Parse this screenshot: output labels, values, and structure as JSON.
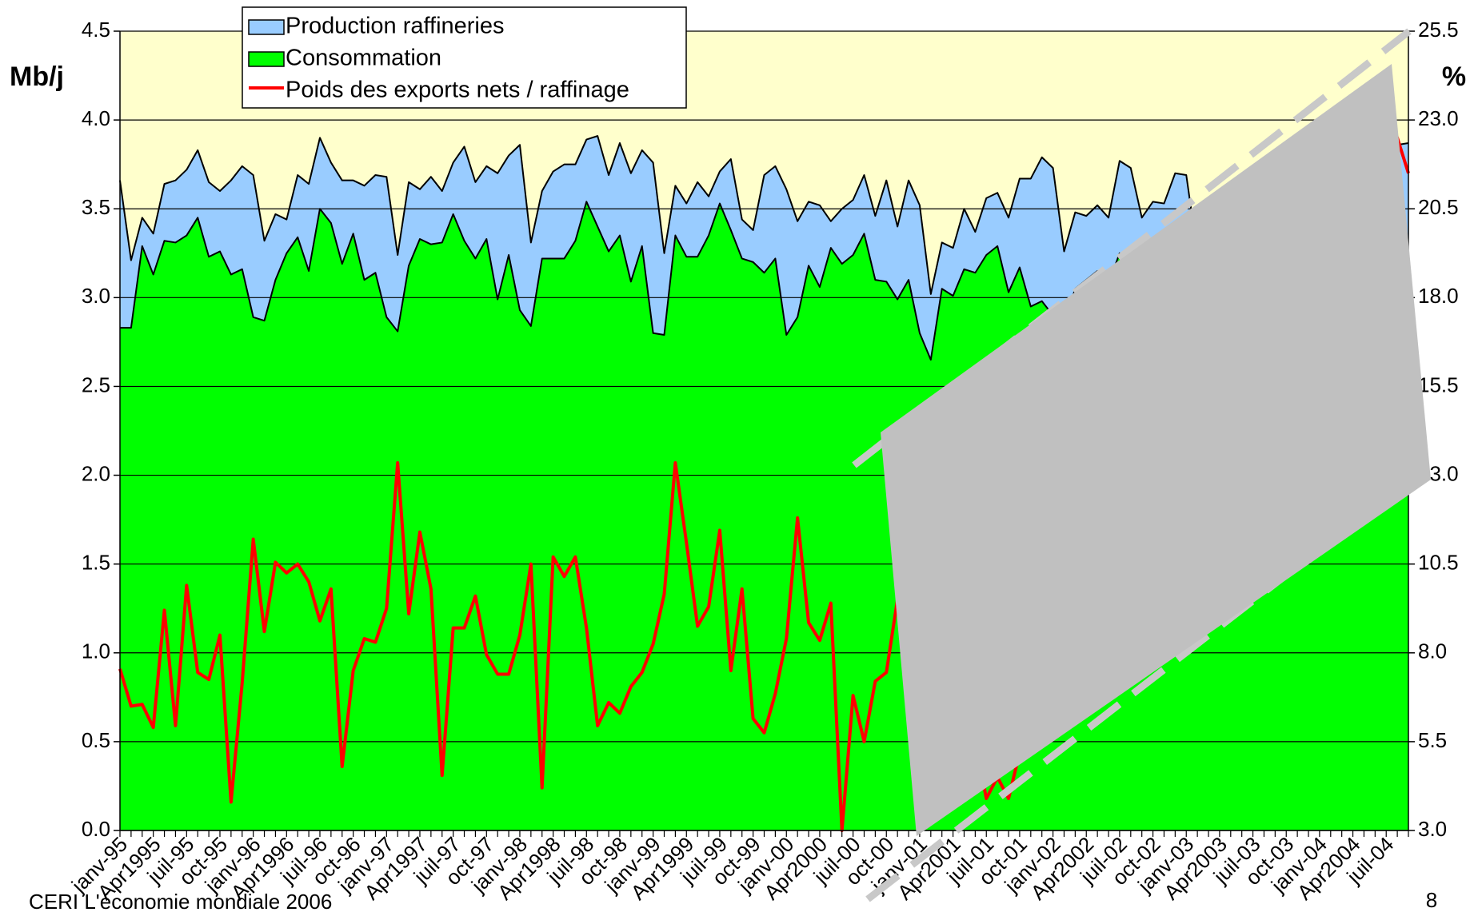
{
  "chart_data": {
    "type": "area",
    "y_label": "Mb/j",
    "y2_label": "%",
    "footer": "CERI L'économie mondiale 2006",
    "page_number": "8",
    "categories": [
      "janv-95",
      null,
      null,
      "Apr1995",
      null,
      null,
      "juil-95",
      null,
      null,
      "oct-95",
      null,
      null,
      "janv-96",
      null,
      null,
      "Apr1996",
      null,
      null,
      "juil-96",
      null,
      null,
      "oct-96",
      null,
      null,
      "janv-97",
      null,
      null,
      "Apr1997",
      null,
      null,
      "juil-97",
      null,
      null,
      "oct-97",
      null,
      null,
      "janv-98",
      null,
      null,
      "Apr1998",
      null,
      null,
      "juil-98",
      null,
      null,
      "oct-98",
      null,
      null,
      "janv-99",
      null,
      null,
      "Apr1999",
      null,
      null,
      "juil-99",
      null,
      null,
      "oct-99",
      null,
      null,
      "janv-00",
      null,
      null,
      "Apr2000",
      null,
      null,
      "juil-00",
      null,
      null,
      "oct-00",
      null,
      null,
      "janv-01",
      null,
      null,
      "Apr2001",
      null,
      null,
      "juil-01",
      null,
      null,
      "oct-01",
      null,
      null,
      "janv-02",
      null,
      null,
      "Apr2002",
      null,
      null,
      "juil-02",
      null,
      null,
      "oct-02",
      null,
      null,
      "janv-03",
      null,
      null,
      "Apr2003",
      null,
      null,
      "juil-03",
      null,
      null,
      "oct-03",
      null,
      null,
      "janv-04",
      null,
      null,
      "Apr2004",
      null,
      null,
      "juil-04",
      null,
      null
    ],
    "series": [
      {
        "name": "Production raffineries",
        "type": "area",
        "color": "#99ccff",
        "values": [
          3.66,
          3.21,
          3.45,
          3.36,
          3.64,
          3.66,
          3.72,
          3.83,
          3.65,
          3.6,
          3.66,
          3.74,
          3.69,
          3.32,
          3.47,
          3.44,
          3.69,
          3.64,
          3.9,
          3.76,
          3.66,
          3.66,
          3.63,
          3.69,
          3.68,
          3.24,
          3.65,
          3.61,
          3.68,
          3.6,
          3.76,
          3.85,
          3.65,
          3.74,
          3.7,
          3.8,
          3.86,
          3.31,
          3.6,
          3.71,
          3.75,
          3.75,
          3.89,
          3.91,
          3.69,
          3.87,
          3.7,
          3.83,
          3.76,
          3.25,
          3.63,
          3.53,
          3.65,
          3.57,
          3.71,
          3.78,
          3.44,
          3.38,
          3.69,
          3.74,
          3.61,
          3.43,
          3.54,
          3.52,
          3.43,
          3.5,
          3.55,
          3.69,
          3.46,
          3.66,
          3.4,
          3.66,
          3.52,
          3.02,
          3.31,
          3.28,
          3.5,
          3.37,
          3.56,
          3.59,
          3.45,
          3.67,
          3.67,
          3.79,
          3.73,
          3.26,
          3.48,
          3.46,
          3.52,
          3.45,
          3.77,
          3.73,
          3.45,
          3.54,
          3.53,
          3.7,
          3.69,
          3.25,
          3.55,
          3.5,
          3.6,
          3.62,
          3.7,
          3.75,
          3.58,
          3.6,
          3.72,
          3.8,
          3.62,
          3.55,
          3.7,
          3.78,
          3.82,
          3.74,
          3.8,
          3.86,
          3.87
        ]
      },
      {
        "name": "Consommation",
        "type": "area",
        "color": "#00ff00",
        "values": [
          2.83,
          2.83,
          3.29,
          3.13,
          3.32,
          3.31,
          3.35,
          3.45,
          3.23,
          3.26,
          3.13,
          3.16,
          2.89,
          2.87,
          3.1,
          3.25,
          3.34,
          3.15,
          3.5,
          3.42,
          3.19,
          3.36,
          3.1,
          3.14,
          2.89,
          2.81,
          3.18,
          3.33,
          3.3,
          3.31,
          3.47,
          3.32,
          3.22,
          3.33,
          2.99,
          3.24,
          2.93,
          2.84,
          3.22,
          3.22,
          3.22,
          3.32,
          3.54,
          3.4,
          3.26,
          3.35,
          3.09,
          3.29,
          2.8,
          2.79,
          3.35,
          3.23,
          3.23,
          3.35,
          3.53,
          3.38,
          3.22,
          3.2,
          3.14,
          3.22,
          2.79,
          2.89,
          3.18,
          3.06,
          3.28,
          3.19,
          3.24,
          3.36,
          3.1,
          3.09,
          2.99,
          3.1,
          2.8,
          2.65,
          3.05,
          3.01,
          3.16,
          3.14,
          3.24,
          3.29,
          3.03,
          3.17,
          2.95,
          2.98,
          2.9,
          2.85,
          3.05,
          3.1,
          3.15,
          3.08,
          3.25,
          3.2,
          3.0,
          3.1,
          2.95,
          3.05,
          2.98,
          2.85,
          3.1,
          3.05,
          3.15,
          3.12,
          3.28,
          3.3,
          3.05,
          3.15,
          3.0,
          3.12,
          3.05,
          2.92,
          3.15,
          3.1,
          3.2,
          3.18,
          3.3,
          3.35,
          3.1
        ]
      },
      {
        "name": "Poids des exports nets / raffinage",
        "type": "line",
        "axis": "y2",
        "color": "#ff0000",
        "values": [
          7.55,
          6.5,
          6.55,
          5.9,
          9.2,
          5.95,
          9.9,
          7.45,
          7.25,
          8.5,
          3.8,
          7.15,
          11.2,
          8.6,
          10.55,
          10.25,
          10.5,
          10.0,
          8.9,
          9.8,
          4.8,
          7.5,
          8.4,
          8.3,
          9.25,
          13.35,
          9.1,
          11.4,
          9.8,
          4.55,
          8.7,
          8.7,
          9.6,
          7.95,
          7.4,
          7.4,
          8.5,
          10.5,
          4.2,
          10.7,
          10.15,
          10.7,
          8.7,
          5.95,
          6.6,
          6.3,
          7.05,
          7.45,
          8.25,
          9.65,
          13.35,
          11.1,
          8.75,
          9.3,
          11.45,
          7.5,
          9.8,
          6.15,
          5.75,
          6.85,
          8.4,
          11.8,
          8.85,
          8.35,
          9.4,
          3.0,
          6.8,
          5.5,
          7.2,
          7.45,
          9.5,
          8.0,
          6.5,
          5.0,
          4.5,
          4.8,
          4.2,
          5.5,
          3.9,
          4.5,
          3.9,
          5.2,
          6.0,
          5.5,
          7.0,
          8.5,
          9.0,
          10.5,
          11.5,
          12.0,
          13.5,
          14.0,
          15.0,
          14.5,
          16.0,
          16.5,
          17.5,
          18.0,
          17.0,
          18.5,
          19.0,
          20.0,
          19.5,
          20.5,
          21.0,
          20.0,
          21.5,
          22.0,
          21.0,
          22.5,
          22.0,
          23.0,
          22.5,
          22.0,
          23.3,
          22.5,
          21.5
        ]
      }
    ],
    "ylim": [
      0,
      4.5
    ],
    "yticks": [
      {
        "value": 0,
        "label": "0.0"
      },
      0.5,
      {
        "value": 1,
        "label": "1.0"
      },
      1.5,
      {
        "value": 2,
        "label": "2.0"
      },
      2.5,
      {
        "value": 3,
        "label": "3.0"
      },
      3.5,
      {
        "value": 4,
        "label": "4.0"
      },
      4.5
    ],
    "y2lim": [
      3,
      25.5
    ],
    "y2ticks": [
      {
        "value": 3,
        "label": "3.0"
      },
      5.5,
      {
        "value": 8,
        "label": "8.0"
      },
      10.5,
      {
        "value": 13,
        "label": "13.0"
      },
      15.5,
      {
        "value": 18,
        "label": "18.0"
      },
      20.5,
      {
        "value": 23,
        "label": "23.0"
      },
      25.5
    ],
    "grid": true,
    "background": "#ffffcc"
  }
}
